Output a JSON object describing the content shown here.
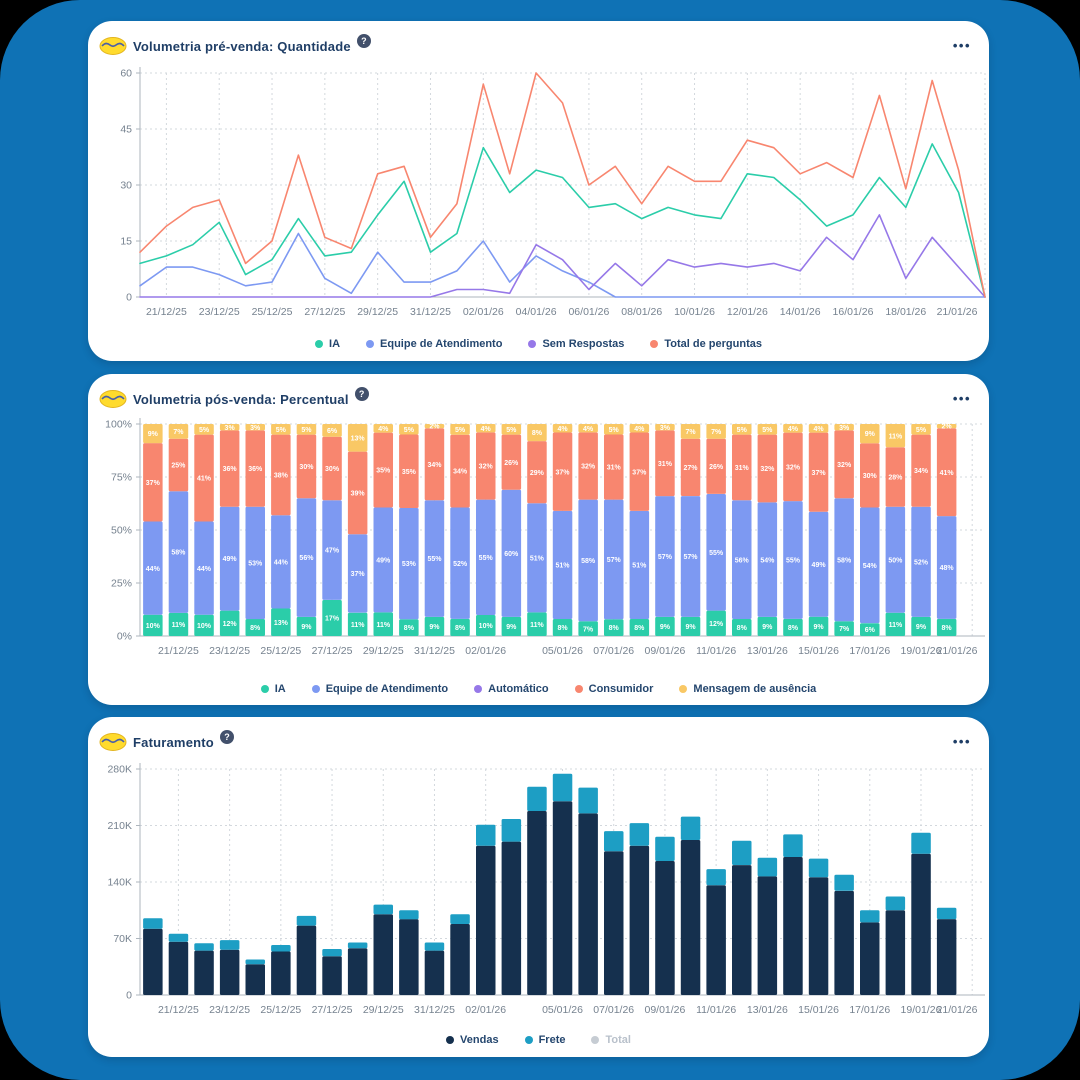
{
  "app": {
    "background_color": "#0F72B5",
    "panel_color": "#FFFFFF",
    "title_color": "#1F3E66",
    "tick_color": "#76828F",
    "grid_color": "#D3D8DD"
  },
  "panels": [
    {
      "title": "Volumetria pré-venda: Quantidade",
      "help_icon": "?",
      "menu_icon": "•••",
      "logo": "marketplace-logo-icon"
    },
    {
      "title": "Volumetria pós-venda: Percentual",
      "help_icon": "?",
      "menu_icon": "•••",
      "logo": "marketplace-logo-icon"
    },
    {
      "title": "Faturamento",
      "help_icon": "?",
      "menu_icon": "•••",
      "logo": "marketplace-logo-icon"
    }
  ],
  "chart_data": [
    {
      "type": "line",
      "title": "Volumetria pré-venda: Quantidade",
      "n_points": 33,
      "x_tick_labels": [
        "21/12/25",
        "23/12/25",
        "25/12/25",
        "27/12/25",
        "29/12/25",
        "31/12/25",
        "02/01/26",
        "04/01/26",
        "06/01/26",
        "08/01/26",
        "10/01/26",
        "12/01/26",
        "14/01/26",
        "16/01/26",
        "18/01/26",
        "21/01/26"
      ],
      "x_tick_indices": [
        1,
        3,
        5,
        7,
        9,
        11,
        13,
        15,
        17,
        19,
        21,
        23,
        25,
        27,
        29,
        32
      ],
      "yticks": [
        0,
        15,
        30,
        45,
        60
      ],
      "ylim": [
        0,
        60
      ],
      "grid": "dotted",
      "legend_position": "bottom",
      "series": [
        {
          "name": "IA",
          "color": "#2BCDA9",
          "values": [
            9,
            11,
            14,
            20,
            6,
            10,
            21,
            11,
            12,
            22,
            31,
            12,
            17,
            40,
            28,
            34,
            32,
            24,
            25,
            21,
            24,
            22,
            21,
            33,
            32,
            26,
            19,
            22,
            32,
            24,
            41,
            28,
            0
          ]
        },
        {
          "name": "Equipe de Atendimento",
          "color": "#7D99F2",
          "values": [
            3,
            8,
            8,
            6,
            3,
            4,
            17,
            5,
            1,
            12,
            4,
            4,
            7,
            15,
            4,
            11,
            7,
            4,
            0,
            0,
            0,
            0,
            0,
            0,
            0,
            0,
            0,
            0,
            0,
            0,
            0,
            0,
            0
          ]
        },
        {
          "name": "Sem Respostas",
          "color": "#9678E8",
          "values": [
            0,
            0,
            0,
            0,
            0,
            0,
            0,
            0,
            0,
            0,
            0,
            0,
            2,
            2,
            1,
            14,
            10,
            2,
            9,
            3,
            10,
            8,
            9,
            8,
            9,
            7,
            16,
            10,
            22,
            5,
            16,
            8,
            0
          ]
        },
        {
          "name": "Total de perguntas",
          "color": "#F8866F",
          "values": [
            12,
            19,
            24,
            26,
            9,
            15,
            38,
            16,
            13,
            33,
            35,
            16,
            25,
            57,
            33,
            60,
            52,
            30,
            35,
            25,
            35,
            31,
            31,
            42,
            40,
            33,
            36,
            32,
            54,
            29,
            58,
            34,
            0
          ]
        }
      ]
    },
    {
      "type": "stacked_bar_percent",
      "title": "Volumetria pós-venda: Percentual",
      "n_bars": 32,
      "x_tick_labels": [
        "21/12/25",
        "23/12/25",
        "25/12/25",
        "27/12/25",
        "29/12/25",
        "31/12/25",
        "02/01/26",
        "05/01/26",
        "07/01/26",
        "09/01/26",
        "11/01/26",
        "13/01/26",
        "15/01/26",
        "17/01/26",
        "19/01/26",
        "21/01/26"
      ],
      "x_tick_indices": [
        1,
        3,
        5,
        7,
        9,
        11,
        13,
        16,
        18,
        20,
        22,
        24,
        26,
        28,
        30,
        32
      ],
      "yticks": [
        "0%",
        "25%",
        "50%",
        "75%",
        "100%"
      ],
      "ytick_values": [
        0,
        25,
        50,
        75,
        100
      ],
      "bar_label_suffix": "%",
      "grid": "dotted",
      "legend_position": "bottom",
      "series": [
        {
          "name": "IA",
          "color": "#2BCDA9",
          "values": [
            10,
            11,
            10,
            12,
            8,
            13,
            9,
            17,
            11,
            11,
            8,
            9,
            8,
            10,
            9,
            11,
            8,
            7,
            8,
            8,
            9,
            9,
            12,
            8,
            9,
            8,
            9,
            7,
            6,
            11,
            9,
            8
          ]
        },
        {
          "name": "Equipe de Atendimento",
          "color": "#7D99F2",
          "values": [
            44,
            58,
            44,
            49,
            53,
            44,
            56,
            47,
            37,
            49,
            53,
            55,
            52,
            55,
            60,
            51,
            51,
            58,
            57,
            51,
            57,
            57,
            55,
            56,
            54,
            55,
            49,
            58,
            54,
            50,
            52,
            48
          ]
        },
        {
          "name": "Automático",
          "color": "#9678E8",
          "values": [
            0,
            0,
            0,
            0,
            0,
            0,
            0,
            0,
            0,
            0,
            0,
            0,
            0,
            0,
            0,
            0,
            0,
            0,
            0,
            0,
            0,
            0,
            0,
            0,
            0,
            0,
            0,
            0,
            0,
            0,
            0,
            0
          ]
        },
        {
          "name": "Consumidor",
          "color": "#F8866F",
          "values": [
            37,
            25,
            41,
            36,
            36,
            38,
            30,
            30,
            39,
            35,
            35,
            34,
            34,
            32,
            26,
            29,
            37,
            32,
            31,
            37,
            31,
            27,
            26,
            31,
            32,
            32,
            37,
            32,
            30,
            28,
            34,
            41
          ]
        },
        {
          "name": "Mensagem de ausência",
          "color": "#F9C865",
          "values": [
            9,
            7,
            5,
            3,
            3,
            5,
            5,
            6,
            13,
            4,
            5,
            2,
            5,
            4,
            5,
            8,
            4,
            4,
            5,
            4,
            3,
            7,
            7,
            5,
            5,
            4,
            4,
            3,
            9,
            11,
            5,
            2
          ]
        }
      ]
    },
    {
      "type": "stacked_bar",
      "title": "Faturamento",
      "n_bars": 32,
      "value_unit": "K",
      "x_tick_labels": [
        "21/12/25",
        "23/12/25",
        "25/12/25",
        "27/12/25",
        "29/12/25",
        "31/12/25",
        "02/01/26",
        "05/01/26",
        "07/01/26",
        "09/01/26",
        "11/01/26",
        "13/01/26",
        "15/01/26",
        "17/01/26",
        "19/01/26",
        "21/01/26"
      ],
      "x_tick_indices": [
        1,
        3,
        5,
        7,
        9,
        11,
        13,
        16,
        18,
        20,
        22,
        24,
        26,
        28,
        30,
        32
      ],
      "yticks": [
        "0",
        "70K",
        "140K",
        "210K",
        "280K"
      ],
      "ytick_values": [
        0,
        70,
        140,
        210,
        280
      ],
      "ylim": [
        0,
        280
      ],
      "grid": "dotted",
      "legend_position": "bottom",
      "series": [
        {
          "name": "Vendas",
          "color": "#15304E",
          "values": [
            82,
            66,
            55,
            56,
            38,
            54,
            86,
            48,
            58,
            100,
            94,
            55,
            88,
            185,
            190,
            228,
            240,
            225,
            178,
            185,
            166,
            192,
            136,
            161,
            147,
            171,
            146,
            129,
            90,
            105,
            175,
            94
          ]
        },
        {
          "name": "Frete",
          "color": "#1D9EC4",
          "values": [
            13,
            10,
            9,
            12,
            6,
            8,
            12,
            9,
            7,
            12,
            11,
            10,
            12,
            26,
            28,
            30,
            34,
            32,
            25,
            28,
            30,
            29,
            20,
            30,
            23,
            28,
            23,
            20,
            15,
            17,
            26,
            14
          ]
        }
      ],
      "legend_extra": [
        {
          "name": "Total",
          "color": "#C6CCD3",
          "muted": true
        }
      ]
    }
  ]
}
